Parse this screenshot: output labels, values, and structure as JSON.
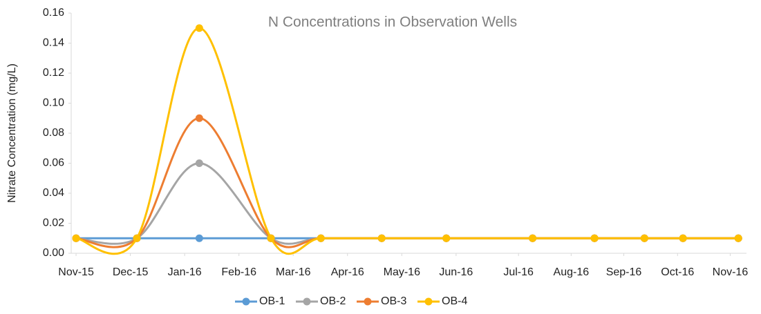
{
  "chart_data": {
    "type": "line",
    "title": "N Concentrations  in Observation Wells",
    "y_label": "Nitrate Concentration (mg/L)",
    "x": [
      0,
      1.12,
      2.27,
      3.59,
      4.51,
      5.63,
      6.82,
      8.41,
      9.55,
      10.47,
      11.18,
      12.2
    ],
    "xlim": [
      -0.09,
      12.35
    ],
    "xticks": [
      {
        "value": 0,
        "label": "Nov-15"
      },
      {
        "value": 1,
        "label": "Dec-15"
      },
      {
        "value": 2,
        "label": "Jan-16"
      },
      {
        "value": 3,
        "label": "Feb-16"
      },
      {
        "value": 4,
        "label": "Mar-16"
      },
      {
        "value": 5,
        "label": "Apr-16"
      },
      {
        "value": 6,
        "label": "May-16"
      },
      {
        "value": 7,
        "label": "Jun-16"
      },
      {
        "value": 8.15,
        "label": "Jul-16"
      },
      {
        "value": 9.12,
        "label": "Aug-16"
      },
      {
        "value": 10.09,
        "label": "Sep-16"
      },
      {
        "value": 11.08,
        "label": "Oct-16"
      },
      {
        "value": 12.05,
        "label": "Nov-16"
      }
    ],
    "ylim": [
      0,
      0.16
    ],
    "yticks": [
      {
        "value": 0,
        "label": "0.00"
      },
      {
        "value": 0.02,
        "label": "0.02"
      },
      {
        "value": 0.04,
        "label": "0.04"
      },
      {
        "value": 0.06,
        "label": "0.06"
      },
      {
        "value": 0.08,
        "label": "0.08"
      },
      {
        "value": 0.1,
        "label": "0.10"
      },
      {
        "value": 0.12,
        "label": "0.12"
      },
      {
        "value": 0.14,
        "label": "0.14"
      },
      {
        "value": 0.16,
        "label": "0.16"
      }
    ],
    "smooth": true,
    "series": [
      {
        "name": "OB-1",
        "color": "#5b9bd5",
        "values": [
          0.01,
          0.01,
          0.01,
          0.01,
          0.01,
          0.01,
          0.01,
          0.01,
          0.01,
          0.01,
          0.01,
          0.01
        ]
      },
      {
        "name": "OB-2",
        "color": "#a5a5a5",
        "values": [
          0.01,
          0.01,
          0.06,
          0.01,
          0.01,
          0.01,
          0.01,
          0.01,
          0.01,
          0.01,
          0.01,
          0.01
        ]
      },
      {
        "name": "OB-3",
        "color": "#ed7d31",
        "values": [
          0.01,
          0.01,
          0.09,
          0.01,
          0.01,
          0.01,
          0.01,
          0.01,
          0.01,
          0.01,
          0.01,
          0.01
        ]
      },
      {
        "name": "OB-4",
        "color": "#ffc000",
        "values": [
          0.01,
          0.01,
          0.15,
          0.01,
          0.01,
          0.01,
          0.01,
          0.01,
          0.01,
          0.01,
          0.01,
          0.01
        ]
      }
    ]
  }
}
